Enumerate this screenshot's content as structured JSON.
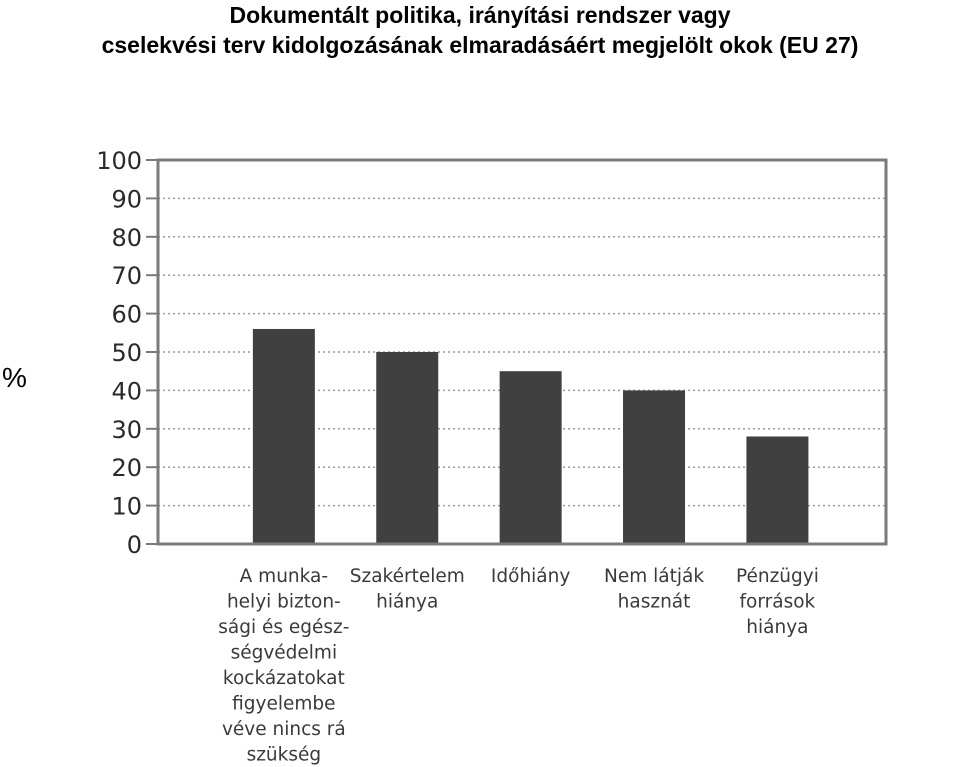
{
  "title_lines": [
    "Dokumentált politika, irányítási rendszer vagy",
    "cselekvési terv kidolgozásának elmaradásáért megjelölt okok (EU 27)"
  ],
  "colors": {
    "bar": "#404040",
    "frame": "#7a7a7a",
    "grid": "#9a9a9a"
  },
  "chart_data": {
    "type": "bar",
    "title": "Dokumentált politika, irányítási rendszer vagy cselekvési terv kidolgozásának elmaradásáért megjelölt okok (EU 27)",
    "ylabel": "%",
    "ylim": [
      0,
      100
    ],
    "yticks": [
      0,
      10,
      20,
      30,
      40,
      50,
      60,
      70,
      80,
      90,
      100
    ],
    "grid": true,
    "categories": [
      [
        "A munka-",
        "helyi bizton-",
        "sági és egész-",
        "ségvédelmi",
        "kockázatokat",
        "figyelembe",
        "véve nincs rá",
        "szükség"
      ],
      [
        "Szakértelem",
        "hiánya"
      ],
      [
        "Időhiány"
      ],
      [
        "Nem látják",
        "hasznát"
      ],
      [
        "Pénzügyi",
        "források",
        "hiánya"
      ]
    ],
    "values": [
      56,
      50,
      45,
      40,
      28
    ]
  }
}
